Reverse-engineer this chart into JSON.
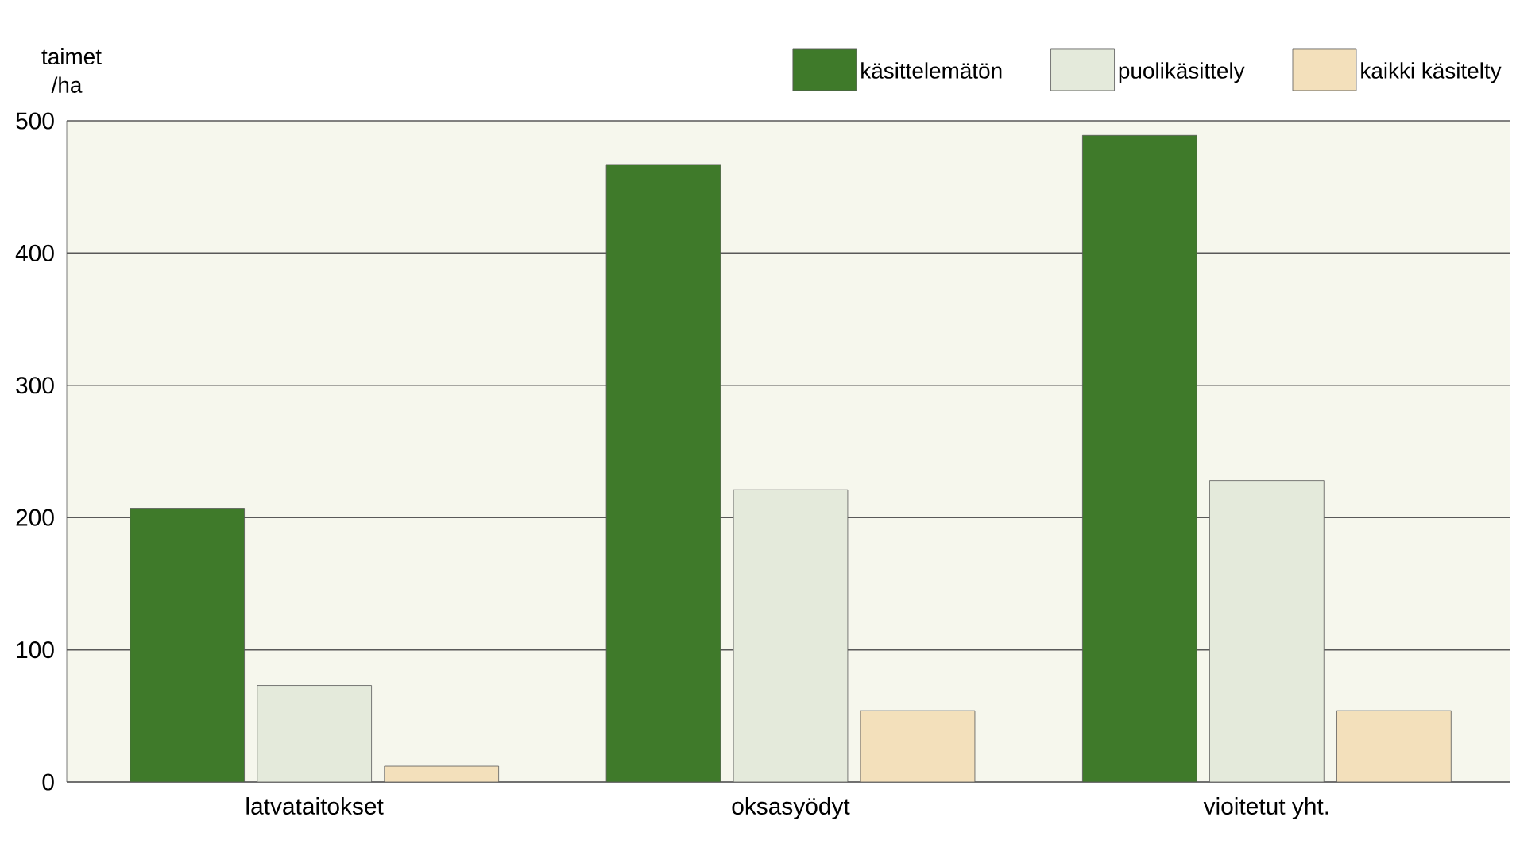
{
  "chart_data": {
    "type": "bar",
    "ylabel": "taimet /ha",
    "categories": [
      "latvataitokset",
      "oksasyödyt",
      "vioitetut yht."
    ],
    "series": [
      {
        "name": "käsittelemätön",
        "color": "#3f7a2a",
        "values": [
          207,
          467,
          489
        ]
      },
      {
        "name": "puolikäsittely",
        "color": "#e4eadb",
        "values": [
          73,
          221,
          228
        ]
      },
      {
        "name": "kaikki käsitelty",
        "color": "#f3e0bb",
        "values": [
          12,
          54,
          54
        ]
      }
    ],
    "ylim": [
      0,
      500
    ],
    "yticks": [
      0,
      100,
      200,
      300,
      400,
      500
    ],
    "grid": "y",
    "legend": "top right"
  }
}
